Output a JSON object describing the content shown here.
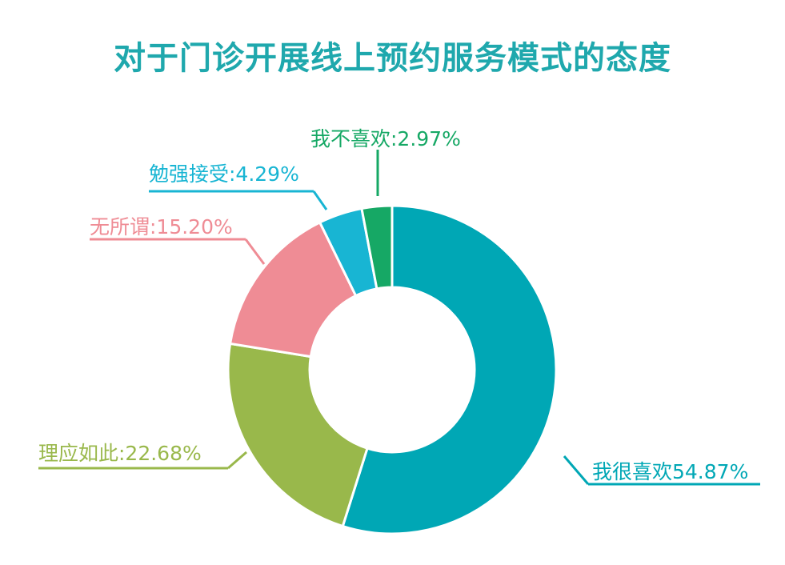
{
  "chart_data": {
    "type": "pie",
    "title": "对于门诊开展线上预约服务模式的态度",
    "style": "donut",
    "slices": [
      {
        "label": "我很喜欢54.87%",
        "value": 54.87,
        "color": "#00a7b5"
      },
      {
        "label": "理应如此:22.68%",
        "value": 22.68,
        "color": "#99b84b"
      },
      {
        "label": "无所谓:15.20%",
        "value": 15.2,
        "color": "#ef8c95"
      },
      {
        "label": "勉强接受:4.29%",
        "value": 4.29,
        "color": "#18b5d3"
      },
      {
        "label": "我不喜欢:2.97%",
        "value": 2.97,
        "color": "#16a865"
      }
    ]
  }
}
